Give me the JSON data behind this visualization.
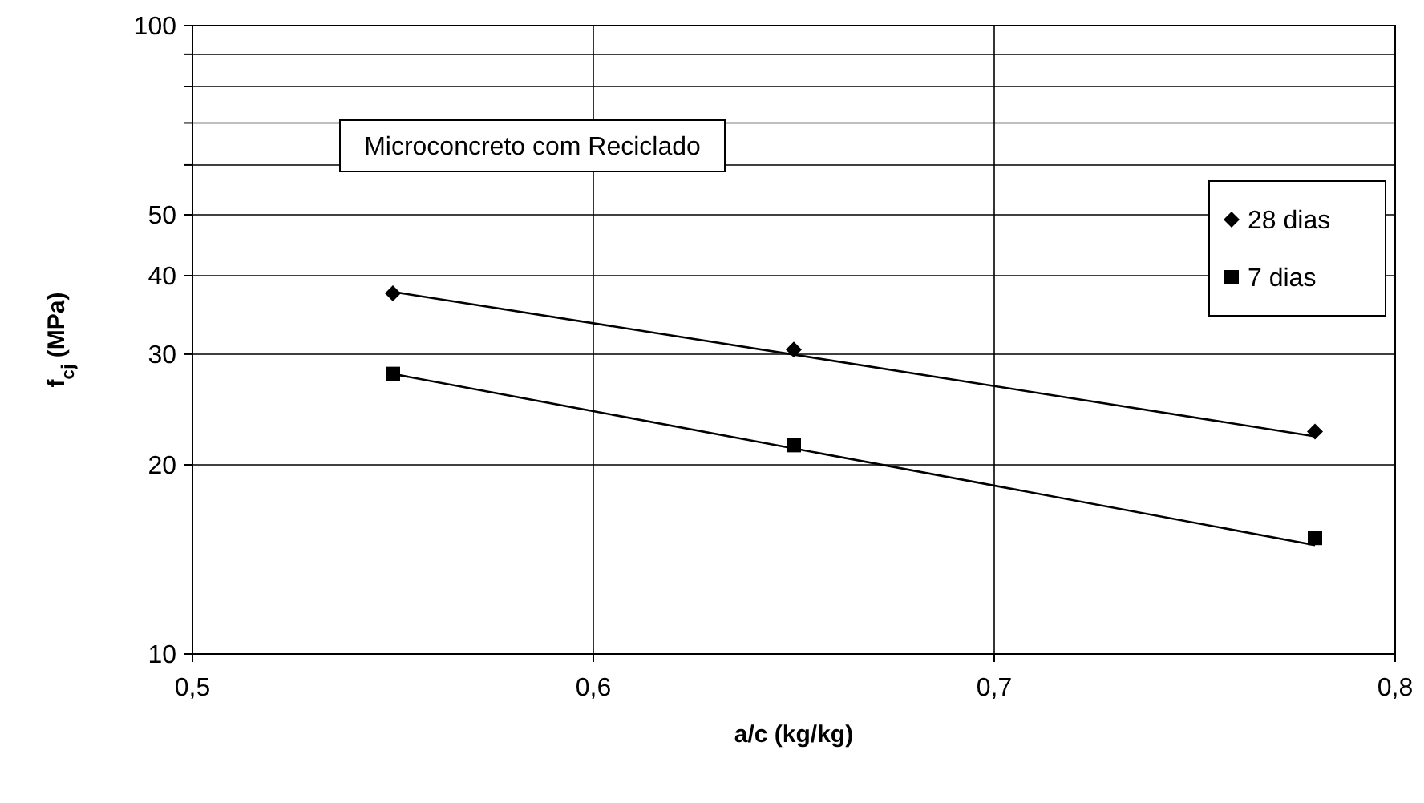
{
  "chart_data": {
    "type": "scatter",
    "xlabel": "a/c (kg/kg)",
    "ylabel": "f$_{cj}$ (MPa)",
    "log": "y",
    "xlim": [
      0.5,
      0.8
    ],
    "xticks": [
      {
        "value": 0.5,
        "label": "0,5"
      },
      {
        "value": 0.6,
        "label": "0,6"
      },
      {
        "value": 0.7,
        "label": "0,7"
      },
      {
        "value": 0.8,
        "label": "0,8"
      }
    ],
    "ylim": [
      10,
      100
    ],
    "yticks": [
      10,
      20,
      30,
      40,
      50,
      {
        "value": 60,
        "label": null
      },
      {
        "value": 70,
        "label": null
      },
      {
        "value": 80,
        "label": null
      },
      {
        "value": 90,
        "label": null
      },
      100
    ],
    "grid": true,
    "legend": "top right",
    "annotations": [
      "Microconcreto com Reciclado"
    ],
    "series": [
      {
        "name": "28 dias",
        "color": "#000000",
        "marker": "diamond",
        "x": [
          0.55,
          0.65,
          0.78
        ],
        "values": [
          37.5,
          30.5,
          22.6
        ]
      },
      {
        "name": "7 dias",
        "color": "#000000",
        "marker": "square",
        "x": [
          0.55,
          0.65,
          0.78
        ],
        "values": [
          27.9,
          21.5,
          15.3
        ]
      },
      {
        "type": "line",
        "color": "#000000",
        "marker": "none",
        "x": [
          0.55,
          0.78
        ],
        "values": [
          37.7,
          22.2
        ]
      },
      {
        "type": "line",
        "color": "#000000",
        "marker": "none",
        "x": [
          0.55,
          0.78
        ],
        "values": [
          27.9,
          14.9
        ]
      }
    ]
  }
}
